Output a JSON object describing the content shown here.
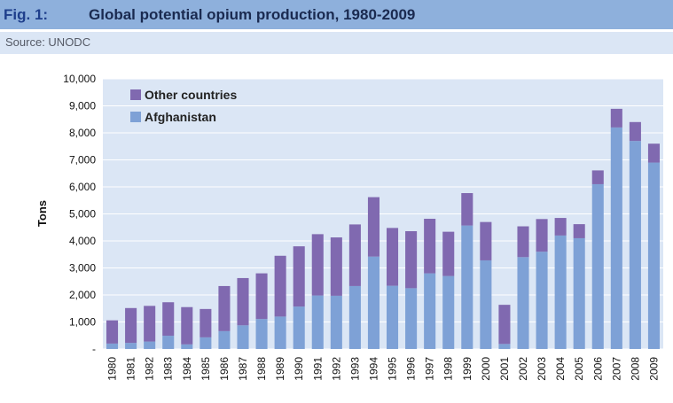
{
  "header": {
    "fig_label": "Fig. 1:",
    "title": "Global potential opium production, 1980-2009",
    "source": "Source: UNODC"
  },
  "colors": {
    "title_bar": "#8eb0dc",
    "source_bar": "#dbe6f5",
    "plot_bg": "#dbe6f5",
    "other": "#8069b0",
    "afghanistan": "#7ea1d6"
  },
  "chart_data": {
    "type": "bar",
    "stacked": true,
    "title": "Global potential opium production, 1980-2009",
    "xlabel": "",
    "ylabel": "Tons",
    "ylim": [
      0,
      10000
    ],
    "yticks": [
      0,
      1000,
      2000,
      3000,
      4000,
      5000,
      6000,
      7000,
      8000,
      9000,
      10000
    ],
    "ytick_labels": [
      "-",
      "1,000",
      "2,000",
      "3,000",
      "4,000",
      "5,000",
      "6,000",
      "7,000",
      "8,000",
      "9,000",
      "10,000"
    ],
    "legend_position": "top-left",
    "categories": [
      "1980",
      "1981",
      "1982",
      "1983",
      "1984",
      "1985",
      "1986",
      "1987",
      "1988",
      "1989",
      "1990",
      "1991",
      "1992",
      "1993",
      "1994",
      "1995",
      "1996",
      "1997",
      "1998",
      "1999",
      "2000",
      "2001",
      "2002",
      "2003",
      "2004",
      "2005",
      "2006",
      "2007",
      "2008",
      "2009"
    ],
    "series": [
      {
        "name": "Afghanistan",
        "values": [
          200,
          225,
          275,
          490,
          170,
          430,
          660,
          875,
          1110,
          1200,
          1570,
          1980,
          1970,
          2330,
          3420,
          2340,
          2250,
          2800,
          2700,
          4570,
          3280,
          185,
          3400,
          3600,
          4200,
          4100,
          6100,
          8200,
          7700,
          6900
        ]
      },
      {
        "name": "Other countries",
        "values": [
          860,
          1290,
          1320,
          1240,
          1380,
          1050,
          1670,
          1750,
          1690,
          2250,
          2230,
          2270,
          2160,
          2280,
          2200,
          2140,
          2110,
          2020,
          1640,
          1200,
          1420,
          1450,
          1140,
          1210,
          650,
          520,
          510,
          690,
          700,
          700
        ]
      }
    ]
  }
}
